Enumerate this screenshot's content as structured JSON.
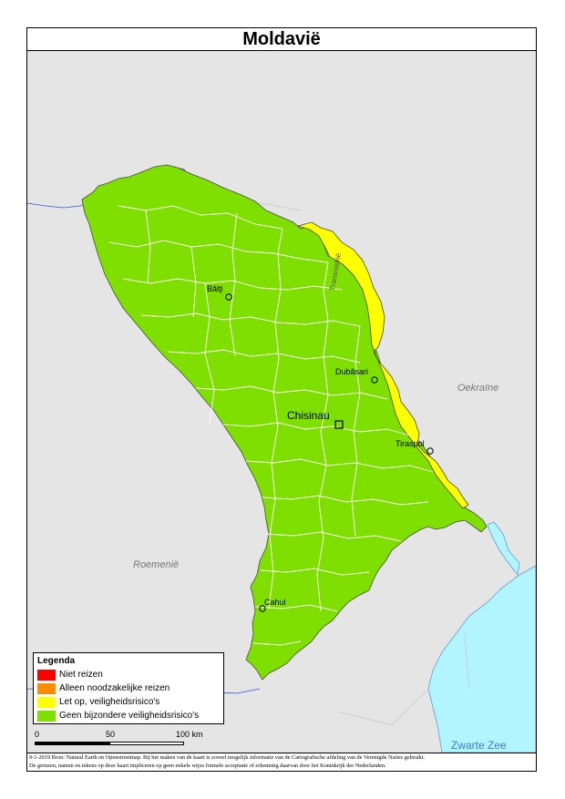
{
  "title": "Moldavië",
  "labels": {
    "capital": "Chisinau",
    "cities": [
      "Bălţi",
      "Dubăsari",
      "Tiraspol",
      "Cahul"
    ],
    "region": "Transnistrië",
    "neighbours": [
      "Oekraïne",
      "Roemenië"
    ],
    "sea": "Zwarte Zee"
  },
  "legend": {
    "title": "Legenda",
    "items": [
      {
        "label": "Niet reizen",
        "color": "#ff0000"
      },
      {
        "label": "Alleen noodzakelijke reizen",
        "color": "#ff8c00"
      },
      {
        "label": "Let op, veiligheidsrisico's",
        "color": "#ffff00"
      },
      {
        "label": "Geen bijzondere veiligheidsrisico's",
        "color": "#7fe000"
      }
    ]
  },
  "scale": {
    "ticks": [
      "0",
      "50",
      "100 km"
    ]
  },
  "footer": {
    "line1": "9-1-2019 Bron: Natural Earth en Openstreetmap. Bij het maken van de kaart is zoveel mogelijk informatie van de Cartografische afdeling van de Verenigde Naties gebruikt.",
    "line2": "De grenzen, namen en tekens op deze kaart impliceren op geen enkele wijze formele acceptatie of erkenning daarvan door het Koninkrijk der Nederlanden."
  },
  "colors": {
    "land": "#e5e5e5",
    "sea": "#b3f5ff",
    "green": "#7fe000",
    "yellow": "#ffff00"
  }
}
